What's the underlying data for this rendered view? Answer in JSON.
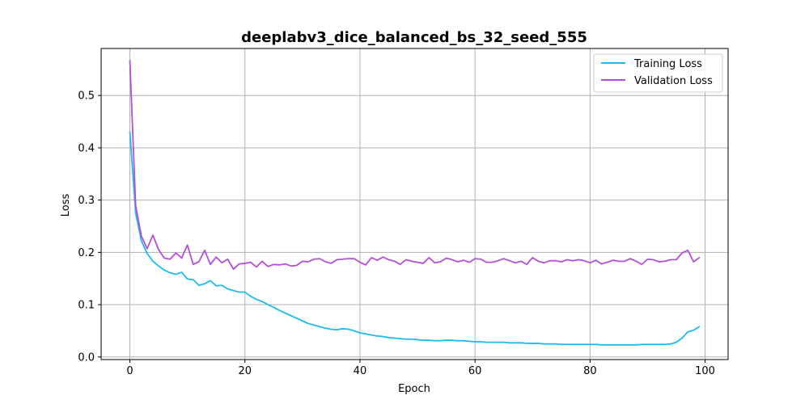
{
  "colors": {
    "training": "#1ABCF0",
    "validation": "#B34FD9",
    "grid": "#B0B0B0",
    "axes": "#000000",
    "background": "#FFFFFF"
  },
  "chart_data": {
    "type": "line",
    "title": "deeplabv3_dice_balanced_bs_32_seed_555",
    "xlabel": "Epoch",
    "ylabel": "Loss",
    "xlim": [
      -5,
      104
    ],
    "ylim": [
      -0.005,
      0.59
    ],
    "grid": true,
    "legend_position": "top-right",
    "xticks": [
      0,
      20,
      40,
      60,
      80,
      100
    ],
    "yticks": [
      0.0,
      0.1,
      0.2,
      0.3,
      0.4,
      0.5
    ],
    "xtick_labels": [
      "0",
      "20",
      "40",
      "60",
      "80",
      "100"
    ],
    "ytick_labels": [
      "0.0",
      "0.1",
      "0.2",
      "0.3",
      "0.4",
      "0.5"
    ],
    "x": [
      0,
      1,
      2,
      3,
      4,
      5,
      6,
      7,
      8,
      9,
      10,
      11,
      12,
      13,
      14,
      15,
      16,
      17,
      18,
      19,
      20,
      21,
      22,
      23,
      24,
      25,
      26,
      27,
      28,
      29,
      30,
      31,
      32,
      33,
      34,
      35,
      36,
      37,
      38,
      39,
      40,
      41,
      42,
      43,
      44,
      45,
      46,
      47,
      48,
      49,
      50,
      51,
      52,
      53,
      54,
      55,
      56,
      57,
      58,
      59,
      60,
      61,
      62,
      63,
      64,
      65,
      66,
      67,
      68,
      69,
      70,
      71,
      72,
      73,
      74,
      75,
      76,
      77,
      78,
      79,
      80,
      81,
      82,
      83,
      84,
      85,
      86,
      87,
      88,
      89,
      90,
      91,
      92,
      93,
      94,
      95,
      96,
      97,
      98,
      99
    ],
    "series": [
      {
        "name": "Training Loss",
        "color": "#1ABCF0",
        "values": [
          0.43,
          0.275,
          0.222,
          0.198,
          0.183,
          0.174,
          0.166,
          0.161,
          0.158,
          0.162,
          0.149,
          0.148,
          0.137,
          0.14,
          0.146,
          0.136,
          0.137,
          0.13,
          0.127,
          0.124,
          0.124,
          0.116,
          0.11,
          0.106,
          0.1,
          0.095,
          0.089,
          0.084,
          0.079,
          0.074,
          0.069,
          0.064,
          0.061,
          0.058,
          0.055,
          0.053,
          0.052,
          0.054,
          0.053,
          0.05,
          0.046,
          0.044,
          0.042,
          0.04,
          0.039,
          0.037,
          0.036,
          0.035,
          0.034,
          0.034,
          0.033,
          0.032,
          0.032,
          0.031,
          0.031,
          0.032,
          0.032,
          0.031,
          0.031,
          0.03,
          0.029,
          0.029,
          0.028,
          0.028,
          0.028,
          0.028,
          0.027,
          0.027,
          0.027,
          0.026,
          0.026,
          0.026,
          0.025,
          0.025,
          0.025,
          0.024,
          0.024,
          0.024,
          0.024,
          0.024,
          0.024,
          0.024,
          0.023,
          0.023,
          0.023,
          0.023,
          0.023,
          0.023,
          0.023,
          0.024,
          0.024,
          0.024,
          0.024,
          0.024,
          0.025,
          0.028,
          0.036,
          0.048,
          0.051,
          0.058
        ]
      },
      {
        "name": "Validation Loss",
        "color": "#B34FD9",
        "values": [
          0.567,
          0.29,
          0.231,
          0.207,
          0.233,
          0.205,
          0.189,
          0.187,
          0.199,
          0.189,
          0.214,
          0.177,
          0.182,
          0.204,
          0.177,
          0.191,
          0.18,
          0.187,
          0.168,
          0.178,
          0.179,
          0.181,
          0.172,
          0.183,
          0.173,
          0.177,
          0.176,
          0.178,
          0.174,
          0.175,
          0.183,
          0.182,
          0.187,
          0.188,
          0.182,
          0.179,
          0.186,
          0.187,
          0.188,
          0.188,
          0.181,
          0.176,
          0.19,
          0.185,
          0.191,
          0.186,
          0.183,
          0.177,
          0.186,
          0.183,
          0.181,
          0.179,
          0.19,
          0.18,
          0.182,
          0.189,
          0.186,
          0.182,
          0.185,
          0.181,
          0.188,
          0.187,
          0.181,
          0.181,
          0.184,
          0.188,
          0.184,
          0.18,
          0.183,
          0.177,
          0.19,
          0.183,
          0.18,
          0.184,
          0.184,
          0.182,
          0.186,
          0.184,
          0.186,
          0.184,
          0.18,
          0.185,
          0.178,
          0.181,
          0.185,
          0.183,
          0.183,
          0.188,
          0.183,
          0.177,
          0.187,
          0.186,
          0.182,
          0.183,
          0.186,
          0.186,
          0.199,
          0.204,
          0.182,
          0.19
        ]
      }
    ]
  }
}
